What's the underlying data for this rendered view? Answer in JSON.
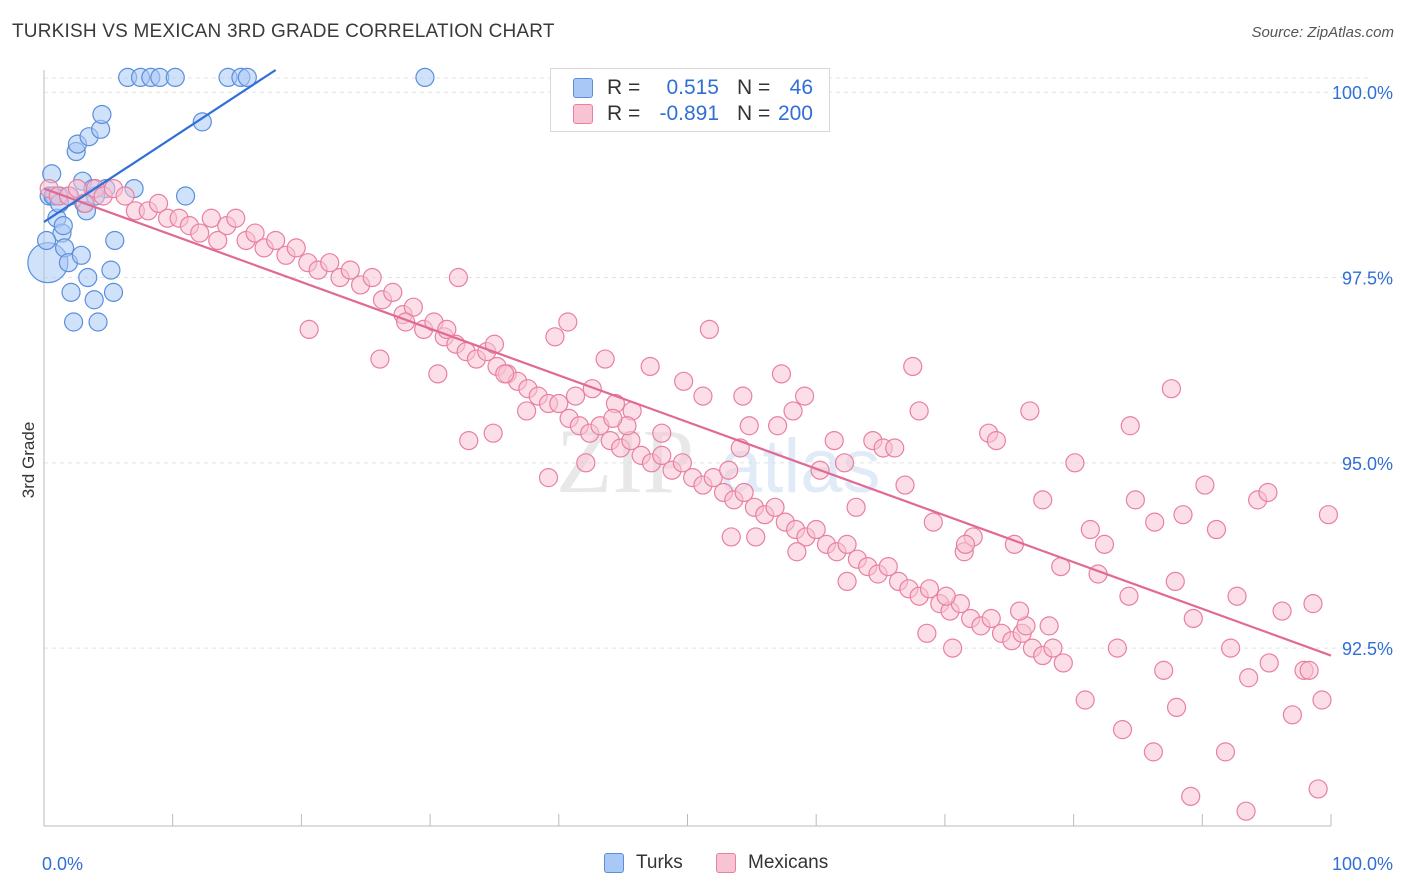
{
  "title": "TURKISH VS MEXICAN 3RD GRADE CORRELATION CHART",
  "source": "Source: ZipAtlas.com",
  "watermark": {
    "zip": "ZIP",
    "atlas": "atlas"
  },
  "legend": {
    "rows": [
      {
        "r_label": "R =",
        "r_value": "0.515",
        "n_label": "N =",
        "n_value": "46"
      },
      {
        "r_label": "R =",
        "r_value": "-0.891",
        "n_label": "N =",
        "n_value": "200"
      }
    ]
  },
  "bottom_legend": {
    "turks": "Turks",
    "mexicans": "Mexicans"
  },
  "colors": {
    "turks_fill": "#a9c8f5",
    "turks_stroke": "#5b8fdc",
    "turks_line": "#2f6fd6",
    "mexicans_fill": "#f8c3d3",
    "mexicans_stroke": "#e9809f",
    "mexicans_line": "#e06a93",
    "axis_label": "#2f6fd6",
    "grid": "#e3e3e3"
  },
  "chart_data": {
    "type": "scatter",
    "title": "TURKISH VS MEXICAN 3RD GRADE CORRELATION CHART",
    "xlabel": "",
    "ylabel": "3rd Grade",
    "xlim": [
      0,
      100
    ],
    "ylim": [
      90.1,
      100.3
    ],
    "x_tick_labels": [
      {
        "value": 0,
        "label": "0.0%"
      },
      {
        "value": 100,
        "label": "100.0%"
      }
    ],
    "y_ticks": [
      {
        "value": 100.0,
        "label": "100.0%"
      },
      {
        "value": 97.5,
        "label": "97.5%"
      },
      {
        "value": 95.0,
        "label": "95.0%"
      },
      {
        "value": 92.5,
        "label": "92.5%"
      }
    ],
    "grid": true,
    "legend_position": "top-center",
    "series": [
      {
        "name": "Turks",
        "r": 0.515,
        "n": 46,
        "trend": [
          [
            0.0,
            98.25
          ],
          [
            18.0,
            100.3
          ]
        ],
        "points": [
          [
            0.3,
            97.7
          ],
          [
            0.4,
            98.6
          ],
          [
            0.6,
            98.9
          ],
          [
            0.8,
            98.6
          ],
          [
            1.0,
            98.3
          ],
          [
            1.2,
            98.6
          ],
          [
            1.4,
            98.1
          ],
          [
            1.6,
            97.9
          ],
          [
            1.9,
            97.7
          ],
          [
            2.1,
            97.3
          ],
          [
            2.3,
            96.9
          ],
          [
            2.5,
            99.2
          ],
          [
            2.6,
            99.3
          ],
          [
            2.9,
            97.8
          ],
          [
            3.0,
            98.8
          ],
          [
            3.1,
            98.5
          ],
          [
            3.4,
            97.5
          ],
          [
            3.5,
            99.4
          ],
          [
            3.8,
            98.7
          ],
          [
            3.9,
            97.2
          ],
          [
            4.2,
            96.9
          ],
          [
            4.4,
            99.5
          ],
          [
            4.5,
            99.7
          ],
          [
            4.8,
            98.7
          ],
          [
            5.2,
            97.6
          ],
          [
            5.4,
            97.3
          ],
          [
            5.5,
            98.0
          ],
          [
            6.5,
            100.2
          ],
          [
            7.5,
            100.2
          ],
          [
            8.3,
            100.2
          ],
          [
            9.0,
            100.2
          ],
          [
            10.2,
            100.2
          ],
          [
            12.3,
            99.6
          ],
          [
            14.3,
            100.2
          ],
          [
            15.3,
            100.2
          ],
          [
            15.8,
            100.2
          ],
          [
            29.6,
            100.2
          ],
          [
            11.0,
            98.6
          ],
          [
            0.2,
            98.0
          ],
          [
            1.5,
            98.2
          ],
          [
            2.0,
            98.6
          ],
          [
            4.0,
            98.6
          ],
          [
            0.7,
            98.6
          ],
          [
            3.3,
            98.4
          ],
          [
            1.2,
            98.5
          ],
          [
            7.0,
            98.7
          ]
        ]
      },
      {
        "name": "Mexicans",
        "r": -0.891,
        "n": 200,
        "trend": [
          [
            0.0,
            98.7
          ],
          [
            100.0,
            92.4
          ]
        ],
        "points": [
          [
            0.4,
            98.7
          ],
          [
            1.1,
            98.6
          ],
          [
            1.9,
            98.6
          ],
          [
            2.6,
            98.7
          ],
          [
            3.2,
            98.5
          ],
          [
            4.0,
            98.7
          ],
          [
            4.6,
            98.6
          ],
          [
            5.4,
            98.7
          ],
          [
            6.3,
            98.6
          ],
          [
            7.1,
            98.4
          ],
          [
            8.1,
            98.4
          ],
          [
            8.9,
            98.5
          ],
          [
            9.6,
            98.3
          ],
          [
            10.5,
            98.3
          ],
          [
            11.3,
            98.2
          ],
          [
            12.1,
            98.1
          ],
          [
            13.0,
            98.3
          ],
          [
            13.5,
            98.0
          ],
          [
            14.2,
            98.2
          ],
          [
            14.9,
            98.3
          ],
          [
            15.7,
            98.0
          ],
          [
            16.4,
            98.1
          ],
          [
            17.1,
            97.9
          ],
          [
            18.0,
            98.0
          ],
          [
            18.8,
            97.8
          ],
          [
            19.6,
            97.9
          ],
          [
            20.5,
            97.7
          ],
          [
            21.3,
            97.6
          ],
          [
            22.2,
            97.7
          ],
          [
            23.0,
            97.5
          ],
          [
            23.8,
            97.6
          ],
          [
            24.6,
            97.4
          ],
          [
            25.5,
            97.5
          ],
          [
            26.3,
            97.2
          ],
          [
            27.1,
            97.3
          ],
          [
            27.9,
            97.0
          ],
          [
            28.7,
            97.1
          ],
          [
            29.5,
            96.8
          ],
          [
            30.3,
            96.9
          ],
          [
            31.1,
            96.7
          ],
          [
            32.0,
            96.6
          ],
          [
            32.8,
            96.5
          ],
          [
            33.6,
            96.4
          ],
          [
            34.4,
            96.5
          ],
          [
            35.2,
            96.3
          ],
          [
            36.0,
            96.2
          ],
          [
            36.8,
            96.1
          ],
          [
            37.6,
            96.0
          ],
          [
            38.4,
            95.9
          ],
          [
            39.2,
            95.8
          ],
          [
            40.0,
            95.8
          ],
          [
            40.8,
            95.6
          ],
          [
            41.6,
            95.5
          ],
          [
            42.4,
            95.4
          ],
          [
            43.2,
            95.5
          ],
          [
            44.0,
            95.3
          ],
          [
            44.8,
            95.2
          ],
          [
            45.6,
            95.3
          ],
          [
            46.4,
            95.1
          ],
          [
            47.2,
            95.0
          ],
          [
            48.0,
            95.1
          ],
          [
            48.8,
            94.9
          ],
          [
            49.6,
            95.0
          ],
          [
            50.4,
            94.8
          ],
          [
            51.2,
            94.7
          ],
          [
            52.0,
            94.8
          ],
          [
            52.8,
            94.6
          ],
          [
            53.6,
            94.5
          ],
          [
            54.4,
            94.6
          ],
          [
            55.2,
            94.4
          ],
          [
            56.0,
            94.3
          ],
          [
            56.8,
            94.4
          ],
          [
            57.6,
            94.2
          ],
          [
            58.4,
            94.1
          ],
          [
            59.2,
            94.0
          ],
          [
            60.0,
            94.1
          ],
          [
            60.8,
            93.9
          ],
          [
            61.6,
            93.8
          ],
          [
            62.4,
            93.9
          ],
          [
            63.2,
            93.7
          ],
          [
            64.0,
            93.6
          ],
          [
            64.8,
            93.5
          ],
          [
            65.6,
            93.6
          ],
          [
            66.4,
            93.4
          ],
          [
            67.2,
            93.3
          ],
          [
            68.0,
            93.2
          ],
          [
            68.8,
            93.3
          ],
          [
            69.6,
            93.1
          ],
          [
            70.4,
            93.0
          ],
          [
            71.2,
            93.1
          ],
          [
            72.0,
            92.9
          ],
          [
            72.8,
            92.8
          ],
          [
            73.6,
            92.9
          ],
          [
            74.4,
            92.7
          ],
          [
            75.2,
            92.6
          ],
          [
            76.0,
            92.7
          ],
          [
            76.8,
            92.5
          ],
          [
            77.6,
            92.4
          ],
          [
            78.4,
            92.5
          ],
          [
            79.2,
            92.3
          ],
          [
            20.6,
            96.8
          ],
          [
            26.1,
            96.4
          ],
          [
            28.1,
            96.9
          ],
          [
            30.6,
            96.2
          ],
          [
            31.3,
            96.8
          ],
          [
            32.2,
            97.5
          ],
          [
            35.0,
            96.6
          ],
          [
            35.8,
            96.2
          ],
          [
            39.7,
            96.7
          ],
          [
            40.7,
            96.9
          ],
          [
            41.3,
            95.9
          ],
          [
            42.6,
            96.0
          ],
          [
            43.6,
            96.4
          ],
          [
            44.4,
            95.8
          ],
          [
            45.7,
            95.7
          ],
          [
            47.1,
            96.3
          ],
          [
            48.0,
            95.4
          ],
          [
            49.7,
            96.1
          ],
          [
            51.2,
            95.9
          ],
          [
            53.2,
            94.9
          ],
          [
            53.4,
            94.0
          ],
          [
            54.3,
            95.9
          ],
          [
            54.8,
            95.5
          ],
          [
            57.0,
            95.5
          ],
          [
            57.3,
            96.2
          ],
          [
            58.2,
            95.7
          ],
          [
            59.1,
            95.9
          ],
          [
            60.3,
            94.9
          ],
          [
            61.4,
            95.3
          ],
          [
            62.2,
            95.0
          ],
          [
            63.1,
            94.4
          ],
          [
            64.4,
            95.3
          ],
          [
            65.2,
            95.2
          ],
          [
            66.9,
            94.7
          ],
          [
            67.5,
            96.3
          ],
          [
            68.0,
            95.7
          ],
          [
            69.1,
            94.2
          ],
          [
            70.1,
            93.2
          ],
          [
            71.5,
            93.8
          ],
          [
            72.2,
            94.0
          ],
          [
            73.4,
            95.4
          ],
          [
            74.0,
            95.3
          ],
          [
            75.4,
            93.9
          ],
          [
            76.6,
            95.7
          ],
          [
            77.6,
            94.5
          ],
          [
            78.1,
            92.8
          ],
          [
            79.0,
            93.6
          ],
          [
            80.1,
            95.0
          ],
          [
            81.3,
            94.1
          ],
          [
            81.9,
            93.5
          ],
          [
            82.4,
            93.9
          ],
          [
            83.4,
            92.5
          ],
          [
            84.4,
            95.5
          ],
          [
            84.8,
            94.5
          ],
          [
            86.3,
            94.2
          ],
          [
            87.0,
            92.2
          ],
          [
            87.9,
            93.4
          ],
          [
            88.5,
            94.3
          ],
          [
            89.3,
            92.9
          ],
          [
            90.2,
            94.7
          ],
          [
            91.1,
            94.1
          ],
          [
            92.2,
            92.5
          ],
          [
            92.7,
            93.2
          ],
          [
            93.6,
            92.1
          ],
          [
            94.3,
            94.5
          ],
          [
            95.1,
            94.6
          ],
          [
            96.2,
            93.0
          ],
          [
            97.0,
            91.6
          ],
          [
            97.9,
            92.2
          ],
          [
            98.6,
            93.1
          ],
          [
            99.3,
            91.8
          ],
          [
            99.8,
            94.3
          ],
          [
            68.6,
            92.7
          ],
          [
            71.6,
            93.9
          ],
          [
            76.3,
            92.8
          ],
          [
            80.9,
            91.8
          ],
          [
            83.8,
            91.4
          ],
          [
            84.3,
            93.2
          ],
          [
            86.2,
            91.1
          ],
          [
            88.0,
            91.7
          ],
          [
            91.8,
            91.1
          ],
          [
            95.2,
            92.3
          ],
          [
            98.3,
            92.2
          ],
          [
            99.0,
            90.6
          ],
          [
            93.4,
            90.3
          ],
          [
            89.1,
            90.5
          ],
          [
            75.8,
            93.0
          ],
          [
            70.6,
            92.5
          ],
          [
            87.6,
            96.0
          ],
          [
            66.1,
            95.2
          ],
          [
            62.4,
            93.4
          ],
          [
            58.5,
            93.8
          ],
          [
            55.3,
            94.0
          ],
          [
            54.1,
            95.2
          ],
          [
            51.7,
            96.8
          ],
          [
            45.3,
            95.5
          ],
          [
            44.2,
            95.6
          ],
          [
            42.1,
            95.0
          ],
          [
            39.2,
            94.8
          ],
          [
            37.5,
            95.7
          ],
          [
            34.9,
            95.4
          ],
          [
            33.0,
            95.3
          ]
        ]
      }
    ]
  }
}
